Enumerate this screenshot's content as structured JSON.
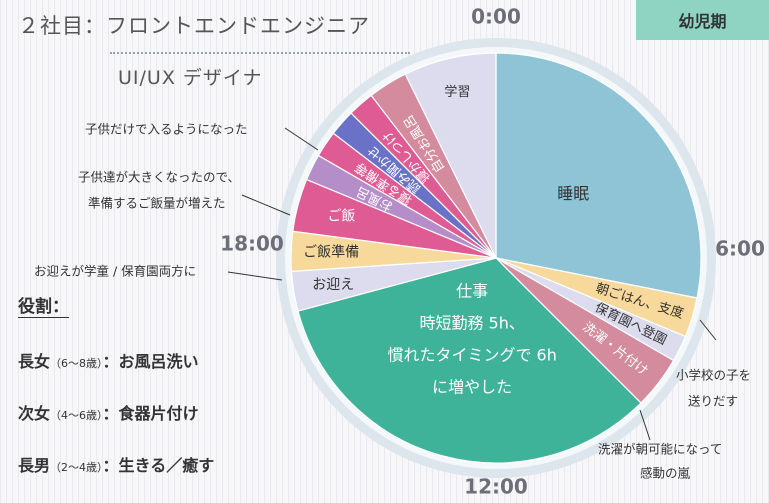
{
  "header": {
    "title": "２社目：フロントエンドエンジニア",
    "subtitle": "UI/UX デザイナ",
    "badge": "幼児期"
  },
  "roles": {
    "title": "役割：",
    "items": [
      {
        "name": "長女",
        "age": "（6～8歳）",
        "sep": "：",
        "task": "お風呂洗い"
      },
      {
        "name": "次女",
        "age": "（4～6歳）",
        "sep": "：",
        "task": "食器片付け"
      },
      {
        "name": "長男",
        "age": "（2～4歳）",
        "sep": "：",
        "task": "生きる／癒す"
      }
    ]
  },
  "colors": {
    "pink": "#df5b93",
    "yellow": "#f7d99b",
    "lavender": "#dcdcee",
    "teal": "#3fb39a",
    "rose": "#d38b9d",
    "blue": "#8fc4d6",
    "violet": "#6a72c8",
    "purple": "#b58dc8",
    "outer_ring": "#dce6ec"
  },
  "chart_data": {
    "type": "pie",
    "unit": "hours",
    "clock_labels": {
      "top": "0:00",
      "right": "6:00",
      "bottom": "12:00",
      "left": "18:00"
    },
    "slices": [
      {
        "label": "睡眠",
        "start": 0.0,
        "end": 6.75,
        "color": "#8fc4d6"
      },
      {
        "label": "朝ごはん、支度",
        "start": 6.75,
        "end": 7.5,
        "color": "#f7d99b"
      },
      {
        "label": "保育園へ登園",
        "start": 7.5,
        "end": 8.0,
        "color": "#dcdcee"
      },
      {
        "label": "洗濯・片付け",
        "start": 8.0,
        "end": 9.0,
        "color": "#d38b9d"
      },
      {
        "label": "仕事",
        "start": 9.0,
        "end": 17.0,
        "color": "#3fb39a",
        "lines": [
          "仕事",
          "時短勤務 5h、",
          "慣れたタイミングで 6h",
          "に増やした"
        ]
      },
      {
        "label": "お迎え",
        "start": 17.0,
        "end": 17.75,
        "color": "#dcdcee"
      },
      {
        "label": "ご飯準備",
        "start": 17.75,
        "end": 18.5,
        "color": "#f7d99b"
      },
      {
        "label": "ご飯",
        "start": 18.5,
        "end": 19.5,
        "color": "#df5b93"
      },
      {
        "label": "お風呂",
        "start": 19.5,
        "end": 20.0,
        "color": "#b58dc8"
      },
      {
        "label": "寝る準備等",
        "start": 20.0,
        "end": 20.5,
        "color": "#df5b93"
      },
      {
        "label": "読み聞かせ",
        "start": 20.5,
        "end": 21.0,
        "color": "#6a72c8"
      },
      {
        "label": "寝かしつけ",
        "start": 21.0,
        "end": 21.5,
        "color": "#df5b93"
      },
      {
        "label": "自分お風呂",
        "start": 21.5,
        "end": 22.25,
        "color": "#d38b9d"
      },
      {
        "label": "学習",
        "start": 22.25,
        "end": 24.0,
        "color": "#dcdcee"
      }
    ],
    "annotations": [
      {
        "text": "子供だけで入るようになった"
      },
      {
        "text": "子供達が大きくなったので、"
      },
      {
        "text": "準備するご飯量が増えた"
      },
      {
        "text": "お迎えが学童 / 保育園両方に"
      },
      {
        "text": "小学校の子を"
      },
      {
        "text": "送りだす"
      },
      {
        "text": "洗濯が朝可能になって"
      },
      {
        "text": "感動の嵐"
      }
    ]
  }
}
